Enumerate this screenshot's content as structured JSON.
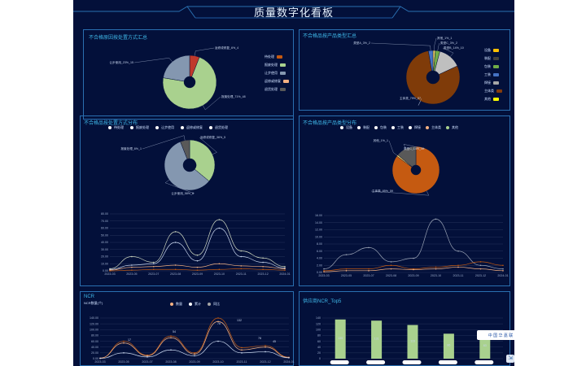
{
  "header": {
    "title": "质量数字化看板"
  },
  "panels": {
    "p1": {
      "title": "不合格原因按处置方式汇总",
      "slices": [
        {
          "label": "返修或修复_6%_4",
          "value": 4,
          "color": "#c0392b"
        },
        {
          "label": "报废处理_71%_48",
          "value": 48,
          "color": "#a9d18e"
        },
        {
          "label": "让步使用_23%_15",
          "value": 15,
          "color": "#8497b0"
        }
      ],
      "legend": [
        {
          "label": "待处理",
          "color": "#c55a11"
        },
        {
          "label": "报废处理",
          "color": "#a9d18e"
        },
        {
          "label": "让步使用",
          "color": "#8497b0"
        },
        {
          "label": "返修或修复",
          "color": "#f4b183"
        },
        {
          "label": "退货处理",
          "color": "#595959"
        }
      ]
    },
    "p2": {
      "title": "不合格品按产品类型汇总",
      "slices": [
        {
          "label": "其他_1%_1",
          "value": 1,
          "color": "#ffd966"
        },
        {
          "label": "类型C_3%_2",
          "value": 2,
          "color": "#70ad47"
        },
        {
          "label": "类型B_14%_10",
          "value": 10,
          "color": "#bfbfbf"
        },
        {
          "label": "主体类_79%_57",
          "value": 57,
          "color": "#7f3b09"
        },
        {
          "label": "类型A_3%_2",
          "value": 2,
          "color": "#4472c4"
        }
      ],
      "legend": [
        {
          "label": "设备",
          "color": "#ffc000"
        },
        {
          "label": "装配",
          "color": "#404040"
        },
        {
          "label": "包装",
          "color": "#70ad47"
        },
        {
          "label": "工装",
          "color": "#4472c4"
        },
        {
          "label": "焊接",
          "color": "#a6a6a6"
        },
        {
          "label": "主体类",
          "color": "#843c0c"
        },
        {
          "label": "其他",
          "color": "#ffff00"
        }
      ]
    },
    "p3": {
      "title": "不合格品按处置方式分布",
      "legend": [
        "待处理",
        "报废处理",
        "让步使用",
        "返修或修复",
        "退货处理"
      ],
      "slices": [
        {
          "label": "返修或修复_36%_5",
          "value": 36,
          "color": "#a9d18e"
        },
        {
          "label": "让步使用_58%_8",
          "value": 58,
          "color": "#8497b0"
        },
        {
          "label": "报废处理_6%_1",
          "value": 6,
          "color": "#595959"
        }
      ]
    },
    "p4": {
      "title": "不合格品按产品类型分布",
      "legend": [
        "设备",
        "装配",
        "包装",
        "工装",
        "焊接",
        "主体类",
        "其他"
      ],
      "slices": [
        {
          "label": "主体类_85%_59",
          "value": 85,
          "color": "#c55a11"
        },
        {
          "label": "其他_1%_1",
          "value": 1,
          "color": "#ffd966"
        },
        {
          "label": "类型C_14%_10",
          "value": 14,
          "color": "#595959"
        }
      ]
    },
    "p5": {
      "title": "NCR",
      "subtitle": "NCR数量(个)",
      "legend": [
        "数量",
        "累计",
        "同比"
      ],
      "bottom_title": "供应商NCR_Top5",
      "bars": [
        {
          "name": "供应商1",
          "value": 135
        },
        {
          "name": "供应商2",
          "value": 131
        },
        {
          "name": "供应商3",
          "value": 116
        },
        {
          "name": "供应商4",
          "value": 86
        },
        {
          "name": "供应商5",
          "value": 83
        }
      ]
    }
  },
  "badge": {
    "text": "中 国 华 嘉 联"
  },
  "chart_data": [
    {
      "type": "pie",
      "title": "不合格原因按处置方式汇总",
      "slices": [
        {
          "label": "返修或修复",
          "value": 4
        },
        {
          "label": "报废处理",
          "value": 48
        },
        {
          "label": "让步使用",
          "value": 15
        }
      ]
    },
    {
      "type": "pie",
      "title": "不合格品按产品类型汇总",
      "slices": [
        {
          "label": "其他",
          "value": 1
        },
        {
          "label": "类型C",
          "value": 2
        },
        {
          "label": "类型B",
          "value": 10
        },
        {
          "label": "主体类",
          "value": 57
        },
        {
          "label": "类型A",
          "value": 2
        }
      ]
    },
    {
      "type": "line",
      "xlabel": "",
      "ylabel": "",
      "categories": [
        "2023-03",
        "2023-05",
        "2023-07",
        "2023-08",
        "2023-09",
        "2023-10",
        "2023-11",
        "2023-12",
        "2024-01"
      ],
      "yticks": [
        "0.00",
        "10.00",
        "20.00",
        "30.00",
        "40.00",
        "50.00",
        "60.00",
        "70.00",
        "80.00"
      ],
      "ylim": [
        0,
        80
      ],
      "series": [
        {
          "values": [
            3,
            20,
            12,
            55,
            22,
            72,
            28,
            18,
            6
          ]
        },
        {
          "values": [
            2,
            8,
            10,
            40,
            14,
            60,
            20,
            12,
            4
          ]
        },
        {
          "values": [
            1,
            5,
            6,
            8,
            5,
            10,
            7,
            6,
            3
          ]
        },
        {
          "values": [
            0,
            1,
            2,
            2,
            1,
            2,
            3,
            2,
            1
          ]
        }
      ]
    },
    {
      "type": "line",
      "categories": [
        "2023-03",
        "2023-05",
        "2023-07",
        "2023-08",
        "2023-09",
        "2023-10",
        "2023-11",
        "2023-12",
        "2024-01"
      ],
      "yticks": [
        "0.00",
        "2.00",
        "4.00",
        "6.00",
        "8.00",
        "10.00",
        "12.00",
        "14.00",
        "16.00"
      ],
      "ylim": [
        0,
        16
      ],
      "series": [
        {
          "values": [
            1,
            5,
            7,
            3,
            4,
            15,
            6,
            2,
            1
          ]
        },
        {
          "values": [
            0.5,
            1,
            1,
            2,
            1,
            1.5,
            2,
            3,
            2
          ]
        },
        {
          "values": [
            0.2,
            0.5,
            0.5,
            1,
            0.8,
            1,
            1.5,
            1,
            0.5
          ]
        }
      ]
    },
    {
      "type": "line",
      "categories": [
        "2023-03",
        "2023-05",
        "2023-07",
        "2023-08",
        "2023-09",
        "2023-10",
        "2023-11",
        "2023-12",
        "2024-01"
      ],
      "yticks": [
        "0.00",
        "20.00",
        "40.00",
        "60.00",
        "80.00",
        "100.00",
        "120.00",
        "140.00"
      ],
      "ylim": [
        0,
        140
      ],
      "series": [
        {
          "name": "数量",
          "values": [
            1,
            60,
            12,
            78,
            20,
            140,
            38,
            45,
            5
          ]
        },
        {
          "name": "累计",
          "values": [
            2,
            54,
            10,
            72,
            16,
            128,
            30,
            40,
            4
          ]
        },
        {
          "name": "同比",
          "values": [
            1,
            20,
            6,
            30,
            10,
            60,
            20,
            24,
            3
          ]
        }
      ],
      "point_labels": [
        "17",
        "54",
        "78",
        "132",
        "78",
        "45"
      ]
    },
    {
      "type": "bar",
      "categories": [
        "供应商1",
        "供应商2",
        "供应商3",
        "供应商4",
        "供应商5"
      ],
      "values": [
        135,
        131,
        116,
        86,
        83
      ],
      "yticks": [
        "0",
        "20",
        "40",
        "60",
        "80",
        "100",
        "120",
        "140"
      ],
      "ylim": [
        0,
        140
      ]
    }
  ]
}
